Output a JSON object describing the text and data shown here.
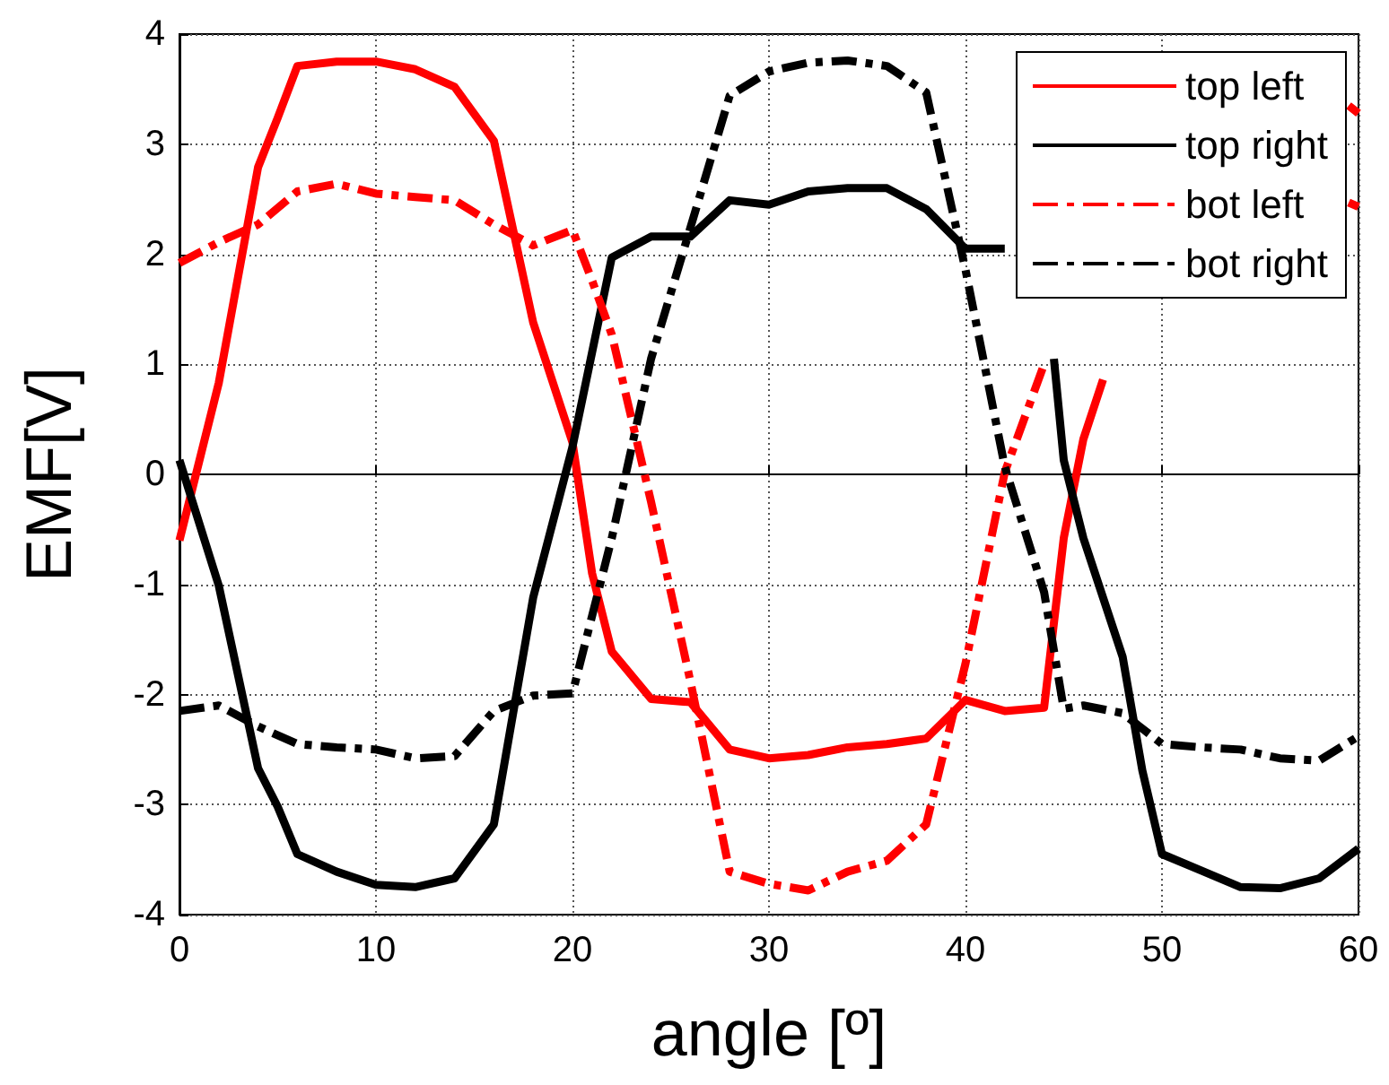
{
  "chart_data": {
    "type": "line",
    "xlabel": "angle [º]",
    "ylabel": "EMF[V]",
    "xlim": [
      0,
      60
    ],
    "xticks": [
      0,
      10,
      20,
      30,
      40,
      50,
      60
    ],
    "ylim": [
      -4,
      4
    ],
    "yticks": [
      -4,
      -3,
      -2,
      -1,
      0,
      1,
      2,
      3,
      4
    ],
    "grid": true,
    "legend": "top right",
    "marker": "none",
    "series": [
      {
        "name": "top left",
        "color": "#ff0000",
        "line_style": "solid",
        "x": [
          0,
          2,
          4,
          5,
          6,
          8,
          10,
          12,
          14,
          16,
          18,
          20,
          21,
          22,
          24,
          26,
          28,
          30,
          32,
          34,
          36,
          38,
          40,
          42,
          44,
          45,
          46,
          47,
          48,
          59.5,
          60
        ],
        "values": [
          -0.6,
          0.83,
          2.79,
          3.24,
          3.71,
          3.75,
          3.75,
          3.68,
          3.52,
          3.03,
          1.38,
          0.29,
          -0.9,
          -1.61,
          -2.04,
          -2.07,
          -2.5,
          -2.58,
          -2.55,
          -2.48,
          -2.45,
          -2.4,
          -2.05,
          -2.15,
          -2.12,
          -0.58,
          0.32,
          0.86,
          null,
          3.35,
          3.28
        ]
      },
      {
        "name": "top right",
        "color": "#000000",
        "line_style": "solid",
        "x": [
          0,
          2,
          4,
          5,
          6,
          8,
          10,
          12,
          14,
          16,
          18,
          20,
          22,
          24,
          26,
          28,
          30,
          32,
          34,
          36,
          38,
          40,
          42,
          43,
          44.5,
          45,
          46,
          48,
          49,
          50,
          52,
          54,
          56,
          58,
          60
        ],
        "values": [
          0.13,
          -1.01,
          -2.67,
          -3.02,
          -3.45,
          -3.61,
          -3.73,
          -3.75,
          -3.67,
          -3.18,
          -1.12,
          0.25,
          1.97,
          2.16,
          2.16,
          2.49,
          2.45,
          2.57,
          2.6,
          2.6,
          2.41,
          2.05,
          2.05,
          null,
          1.05,
          0.13,
          -0.58,
          -1.66,
          -2.69,
          -3.45,
          -3.6,
          -3.75,
          -3.76,
          -3.67,
          -3.4
        ]
      },
      {
        "name": "bot left",
        "color": "#ff0000",
        "line_style": "dashdot",
        "x": [
          0,
          2,
          4,
          6,
          8,
          10,
          12,
          14,
          16,
          18,
          20,
          21,
          22,
          24,
          26,
          28,
          30,
          32,
          34,
          36,
          38,
          40,
          42,
          44,
          46,
          59.5,
          60
        ],
        "values": [
          1.92,
          2.11,
          2.27,
          2.57,
          2.64,
          2.55,
          2.52,
          2.49,
          2.27,
          2.08,
          2.22,
          1.76,
          1.27,
          -0.25,
          -1.88,
          -3.61,
          -3.72,
          -3.78,
          -3.61,
          -3.51,
          -3.18,
          -1.72,
          0.02,
          1.0,
          null,
          2.47,
          2.43
        ]
      },
      {
        "name": "bot right",
        "color": "#000000",
        "line_style": "dashdot",
        "x": [
          0,
          2,
          4,
          6,
          8,
          10,
          12,
          14,
          16,
          18,
          20,
          22,
          24,
          26,
          28,
          30,
          32,
          34,
          36,
          38,
          40,
          42,
          44,
          45,
          46,
          48,
          50,
          52,
          54,
          56,
          58,
          60
        ],
        "values": [
          -2.15,
          -2.1,
          -2.29,
          -2.45,
          -2.48,
          -2.5,
          -2.58,
          -2.56,
          -2.15,
          -2.01,
          -1.99,
          -0.58,
          1.05,
          2.24,
          3.44,
          3.66,
          3.74,
          3.76,
          3.71,
          3.47,
          1.86,
          0.07,
          -1.07,
          -2.13,
          -2.1,
          -2.17,
          -2.45,
          -2.48,
          -2.5,
          -2.58,
          -2.6,
          -2.38
        ]
      }
    ]
  }
}
